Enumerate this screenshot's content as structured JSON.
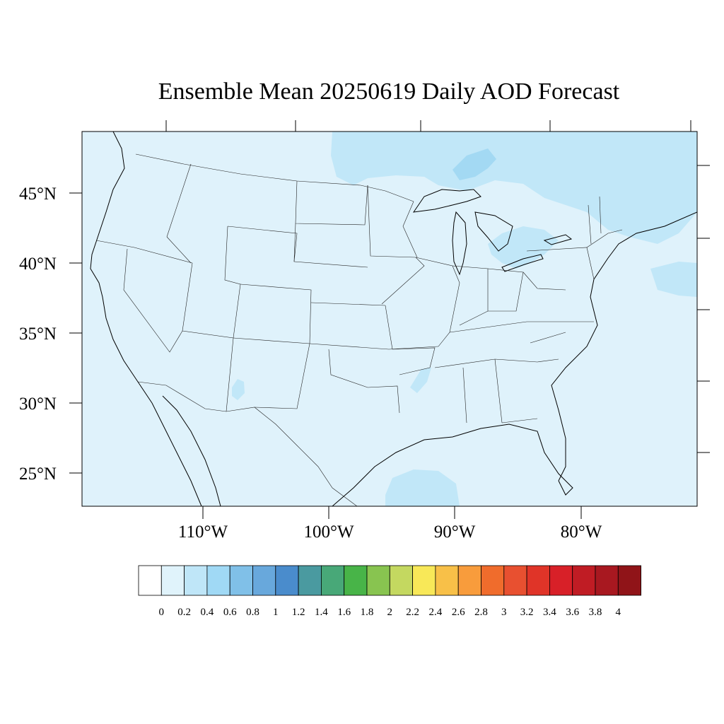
{
  "title": "Ensemble Mean 20250619 Daily AOD Forecast",
  "map": {
    "region": "Contiguous United States",
    "projection": "Lambert conformal",
    "variable": "Aerosol optical depth",
    "lat_labels": [
      "45°N",
      "40°N",
      "35°N",
      "30°N",
      "25°N"
    ],
    "lon_labels": [
      "110°W",
      "100°W",
      "90°W",
      "80°W"
    ],
    "background_class": "0.2-0.4",
    "fields": [
      {
        "name": "canada-quebec-smoke",
        "class": "0.4-0.6",
        "area": "northern Great Lakes, Ontario and Quebec"
      },
      {
        "name": "lake-superior-north-core",
        "class": "0.6-0.8",
        "area": "north of Lake Superior"
      },
      {
        "name": "great-lakes-plume",
        "class": "0.4-0.6",
        "area": "Lake Huron, Lake Erie, Ohio"
      },
      {
        "name": "atlantic-plume",
        "class": "0.4-0.6",
        "area": "Atlantic off New England"
      },
      {
        "name": "gulf-patch",
        "class": "0.4-0.6",
        "area": "Gulf of Mexico south of Louisiana"
      },
      {
        "name": "new-mexico-patch",
        "class": "0.4-0.6",
        "area": "southern New Mexico"
      },
      {
        "name": "louisiana-patch",
        "class": "0.4-0.6",
        "area": "northern Louisiana"
      }
    ]
  },
  "colorbar": {
    "labels": [
      "0",
      "0.2",
      "0.4",
      "0.6",
      "0.8",
      "1",
      "1.2",
      "1.4",
      "1.6",
      "1.8",
      "2",
      "2.2",
      "2.4",
      "2.6",
      "2.8",
      "3",
      "3.2",
      "3.4",
      "3.6",
      "3.8",
      "4"
    ],
    "colors": [
      "#ffffff",
      "#e0f3fb",
      "#bfe6f8",
      "#a0d9f5",
      "#80c0e8",
      "#68a8dc",
      "#4a8ccc",
      "#4a9aa0",
      "#48a878",
      "#48b448",
      "#88c450",
      "#c4d860",
      "#f8e858",
      "#f8c048",
      "#f89c3c",
      "#f06c2c",
      "#e85030",
      "#e03428",
      "#d82028",
      "#c01c24",
      "#a81820",
      "#901418"
    ]
  }
}
